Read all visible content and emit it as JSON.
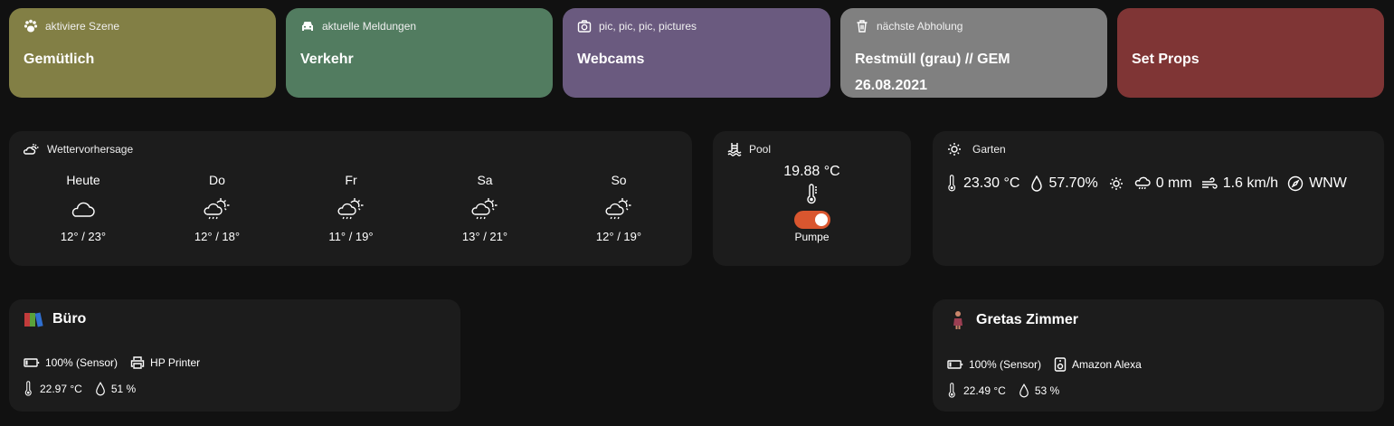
{
  "tiles": [
    {
      "sub": "aktiviere Szene",
      "main": "Gemütlich",
      "color": "#827f45",
      "icon": "paw-icon"
    },
    {
      "sub": "aktuelle Meldungen",
      "main": "Verkehr",
      "color": "#527c60",
      "icon": "car-icon"
    },
    {
      "sub": "pic, pic, pic, pictures",
      "main": "Webcams",
      "color": "#6a5a7f",
      "icon": "camera-icon"
    },
    {
      "sub": "nächste Abholung",
      "main": "Restmüll (grau) // GEM",
      "main2": "26.08.2021",
      "color": "#808080",
      "icon": "trash-icon"
    },
    {
      "sub": "",
      "main": "Set Props",
      "color": "#7f3535"
    }
  ],
  "weather": {
    "title": "Wettervorhersage",
    "days": [
      {
        "label": "Heute",
        "temp": "12° / 23°",
        "icon": "cloudy"
      },
      {
        "label": "Do",
        "temp": "12° / 18°",
        "icon": "partly-rainy"
      },
      {
        "label": "Fr",
        "temp": "11° / 19°",
        "icon": "partly-rainy"
      },
      {
        "label": "Sa",
        "temp": "13° / 21°",
        "icon": "partly-rainy"
      },
      {
        "label": "So",
        "temp": "12° / 19°",
        "icon": "partly-rainy"
      }
    ]
  },
  "pool": {
    "title": "Pool",
    "temperature": "19.88 °C",
    "switch_label": "Pumpe",
    "switch_on": true,
    "switch_color": "#d9562f"
  },
  "garten": {
    "title": "Garten",
    "temperature": "23.30 °C",
    "humidity": "57.70%",
    "rain": "0 mm",
    "wind": "1.6 km/h",
    "direction": "WNW"
  },
  "buero": {
    "title": "Büro",
    "battery": "100% (Sensor)",
    "device": "HP Printer",
    "temperature": "22.97 °C",
    "humidity": "51 %"
  },
  "greta": {
    "title": "Gretas Zimmer",
    "battery": "100% (Sensor)",
    "device": "Amazon Alexa",
    "temperature": "22.49 °C",
    "humidity": "53 %"
  }
}
